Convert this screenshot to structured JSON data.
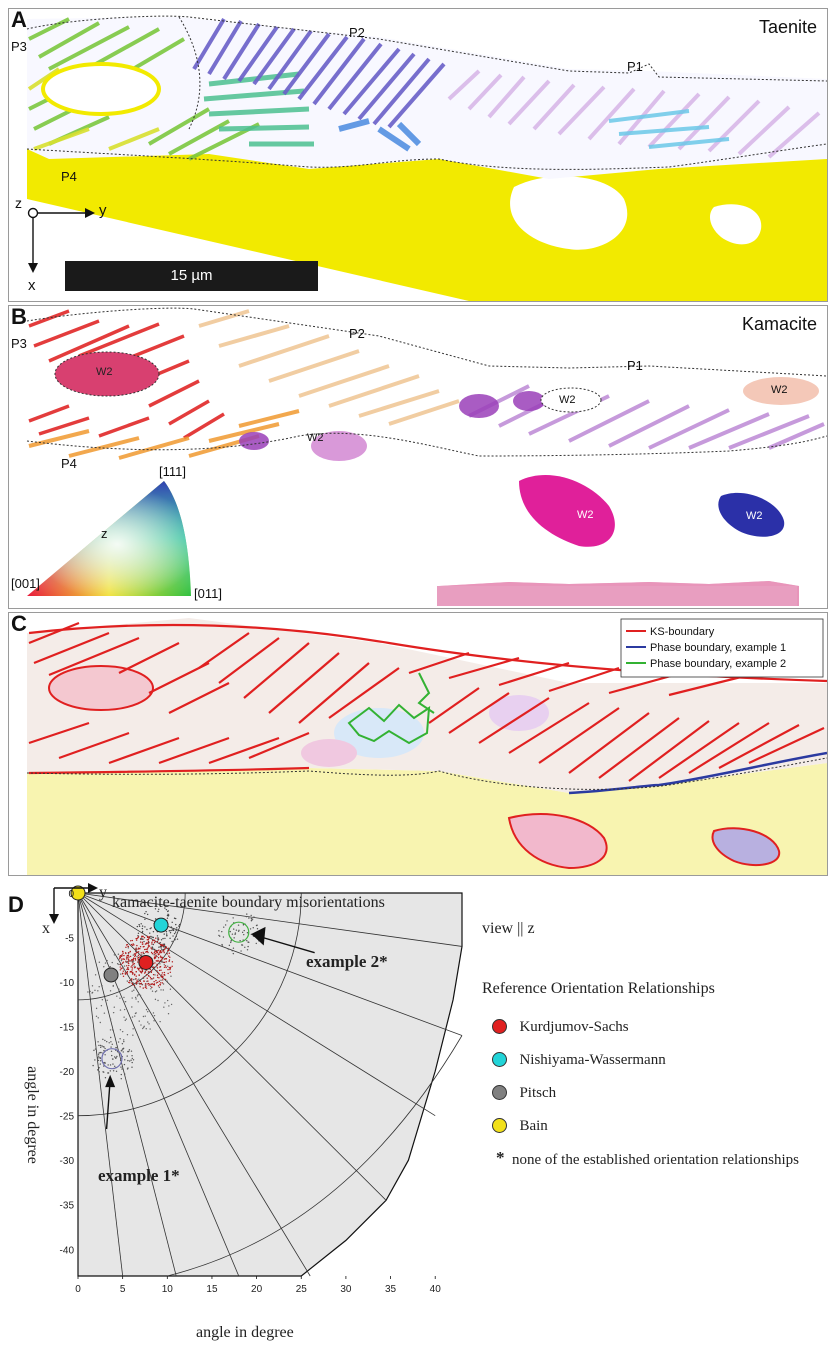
{
  "panelA": {
    "label": "A",
    "title": "Taenite",
    "annotations": [
      "P1",
      "P2",
      "P3",
      "P4"
    ],
    "axes": {
      "z": "z",
      "y": "y",
      "x": "x"
    },
    "scalebar": "15 µm"
  },
  "panelB": {
    "label": "B",
    "title": "Kamacite",
    "annotations": [
      "P1",
      "P2",
      "P3",
      "P4"
    ],
    "w2_labels": [
      "W2",
      "W2",
      "W2",
      "W2",
      "W2",
      "W2"
    ],
    "ipf": {
      "top": "[111]",
      "left": "[001]",
      "right": "[011]",
      "center": "z"
    }
  },
  "panelC": {
    "label": "C",
    "legend": [
      {
        "name": "KS-boundary",
        "color": "#e02020"
      },
      {
        "name": "Phase boundary, example 1",
        "color": "#2b3aa0"
      },
      {
        "name": "Phase boundary, example 2",
        "color": "#33b233"
      }
    ]
  },
  "panelD": {
    "label": "D",
    "title": "kamacite-taenite boundary misorientations",
    "axis_corner": {
      "y": "y",
      "x": "x"
    },
    "view": "view || z",
    "xlabel": "angle in degree",
    "ylabel": "angle in degree",
    "example1": "example 1*",
    "example2": "example 2*",
    "legend_title": "Reference Orientation Relationships",
    "refs": [
      {
        "name": "Kurdjumov-Sachs",
        "color": "#e02020"
      },
      {
        "name": "Nishiyama-Wassermann",
        "color": "#22d4d8"
      },
      {
        "name": "Pitsch",
        "color": "#808080"
      },
      {
        "name": "Bain",
        "color": "#f2e01a"
      }
    ],
    "footnote_mark": "*",
    "footnote": "none of the established orientation relationships"
  },
  "chart_data": {
    "type": "scatter",
    "title": "kamacite-taenite boundary misorientations",
    "xlabel": "angle in degree",
    "ylabel": "angle in degree",
    "xlim": [
      0,
      43
    ],
    "ylim": [
      -43,
      0
    ],
    "xticks": [
      "0",
      "5",
      "10",
      "15",
      "20",
      "25",
      "30",
      "35",
      "40"
    ],
    "yticks": [
      "0",
      "-5",
      "-10",
      "-15",
      "-20",
      "-25",
      "-30",
      "-35",
      "-40"
    ],
    "points": [
      {
        "name": "Kurdjumov-Sachs",
        "x": 7.6,
        "y": -7.8,
        "color": "#e02020"
      },
      {
        "name": "Nishiyama-Wassermann",
        "x": 9.3,
        "y": -3.6,
        "color": "#22d4d8"
      },
      {
        "name": "Pitsch",
        "x": 3.7,
        "y": -9.2,
        "color": "#808080"
      },
      {
        "name": "Bain",
        "x": 0,
        "y": 0,
        "color": "#f2e01a"
      }
    ],
    "examples": [
      {
        "name": "example 1",
        "x": 3.8,
        "y": -18.6
      },
      {
        "name": "example 2",
        "x": 18.0,
        "y": -4.4
      }
    ]
  }
}
